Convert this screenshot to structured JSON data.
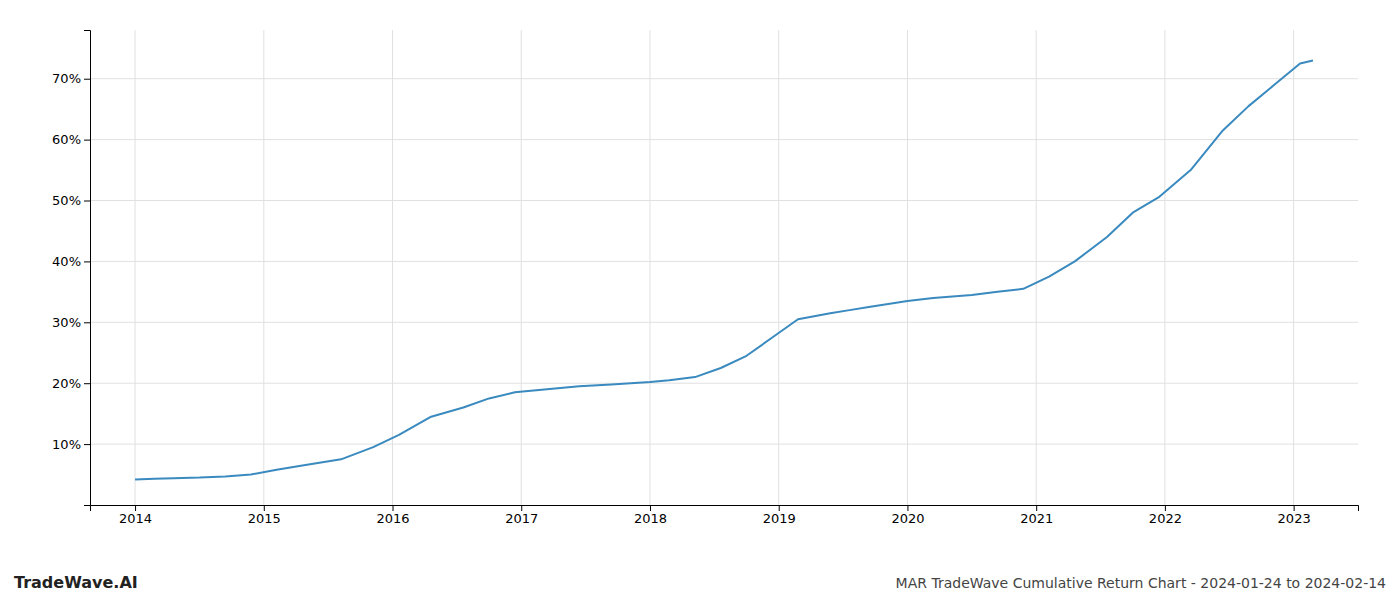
{
  "chart_data": {
    "type": "line",
    "title": "MAR TradeWave Cumulative Return Chart - 2024-01-24 to 2024-02-14",
    "annotations": [
      "TradeWave.AI"
    ],
    "color": "#3a8abf",
    "grid": true,
    "x": [
      2014.0,
      2014.15,
      2014.3,
      2014.5,
      2014.7,
      2014.9,
      2015.1,
      2015.3,
      2015.6,
      2015.85,
      2016.05,
      2016.3,
      2016.55,
      2016.75,
      2016.95,
      2017.2,
      2017.45,
      2017.7,
      2017.85,
      2018.0,
      2018.15,
      2018.35,
      2018.55,
      2018.75,
      2018.95,
      2019.15,
      2019.4,
      2019.55,
      2019.7,
      2019.85,
      2020.0,
      2020.2,
      2020.5,
      2020.7,
      2020.9,
      2021.1,
      2021.3,
      2021.55,
      2021.75,
      2021.95,
      2022.2,
      2022.45,
      2022.65,
      2022.85,
      2023.05,
      2023.15
    ],
    "values": [
      4.2,
      4.3,
      4.4,
      4.5,
      4.7,
      5.0,
      5.8,
      6.5,
      7.5,
      9.5,
      11.5,
      14.5,
      16.0,
      17.5,
      18.5,
      19.0,
      19.5,
      19.8,
      20.0,
      20.2,
      20.5,
      21.0,
      22.5,
      24.5,
      27.5,
      30.5,
      31.5,
      32.0,
      32.5,
      33.0,
      33.5,
      34.0,
      34.5,
      35.0,
      35.5,
      37.5,
      40.0,
      44.0,
      48.0,
      50.5,
      55.0,
      61.5,
      65.5,
      69.0,
      72.5,
      73.0
    ],
    "xlim": [
      2013.65,
      2023.5
    ],
    "xticks": [
      2014,
      2015,
      2016,
      2017,
      2018,
      2019,
      2020,
      2021,
      2022,
      2023
    ],
    "ylim": [
      0,
      78
    ],
    "yticks": [
      {
        "value": 10,
        "label": "10%"
      },
      {
        "value": 20,
        "label": "20%"
      },
      {
        "value": 30,
        "label": "30%"
      },
      {
        "value": 40,
        "label": "40%"
      },
      {
        "value": 50,
        "label": "50%"
      },
      {
        "value": 60,
        "label": "60%"
      },
      {
        "value": 70,
        "label": "70%"
      }
    ]
  }
}
